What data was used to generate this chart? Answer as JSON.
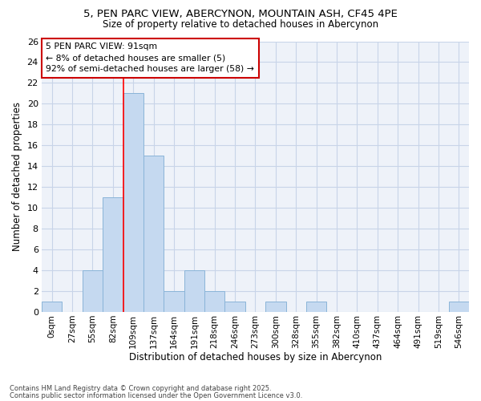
{
  "title_line1": "5, PEN PARC VIEW, ABERCYNON, MOUNTAIN ASH, CF45 4PE",
  "title_line2": "Size of property relative to detached houses in Abercynon",
  "xlabel": "Distribution of detached houses by size in Abercynon",
  "ylabel": "Number of detached properties",
  "bin_labels": [
    "0sqm",
    "27sqm",
    "55sqm",
    "82sqm",
    "109sqm",
    "137sqm",
    "164sqm",
    "191sqm",
    "218sqm",
    "246sqm",
    "273sqm",
    "300sqm",
    "328sqm",
    "355sqm",
    "382sqm",
    "410sqm",
    "437sqm",
    "464sqm",
    "491sqm",
    "519sqm",
    "546sqm"
  ],
  "bar_values": [
    1,
    0,
    4,
    11,
    21,
    15,
    2,
    4,
    2,
    1,
    0,
    1,
    0,
    1,
    0,
    0,
    0,
    0,
    0,
    0,
    1
  ],
  "bar_color": "#c5d9f0",
  "bar_edge_color": "#8ab4d8",
  "grid_color": "#c8d4e8",
  "background_color": "#ffffff",
  "plot_bg_color": "#eef2f9",
  "red_line_x": 3.5,
  "annotation_text": "5 PEN PARC VIEW: 91sqm\n← 8% of detached houses are smaller (5)\n92% of semi-detached houses are larger (58) →",
  "annotation_box_color": "#ffffff",
  "annotation_box_edge": "#cc0000",
  "footnote_line1": "Contains HM Land Registry data © Crown copyright and database right 2025.",
  "footnote_line2": "Contains public sector information licensed under the Open Government Licence v3.0.",
  "ylim": [
    0,
    26
  ],
  "yticks": [
    0,
    2,
    4,
    6,
    8,
    10,
    12,
    14,
    16,
    18,
    20,
    22,
    24,
    26
  ]
}
